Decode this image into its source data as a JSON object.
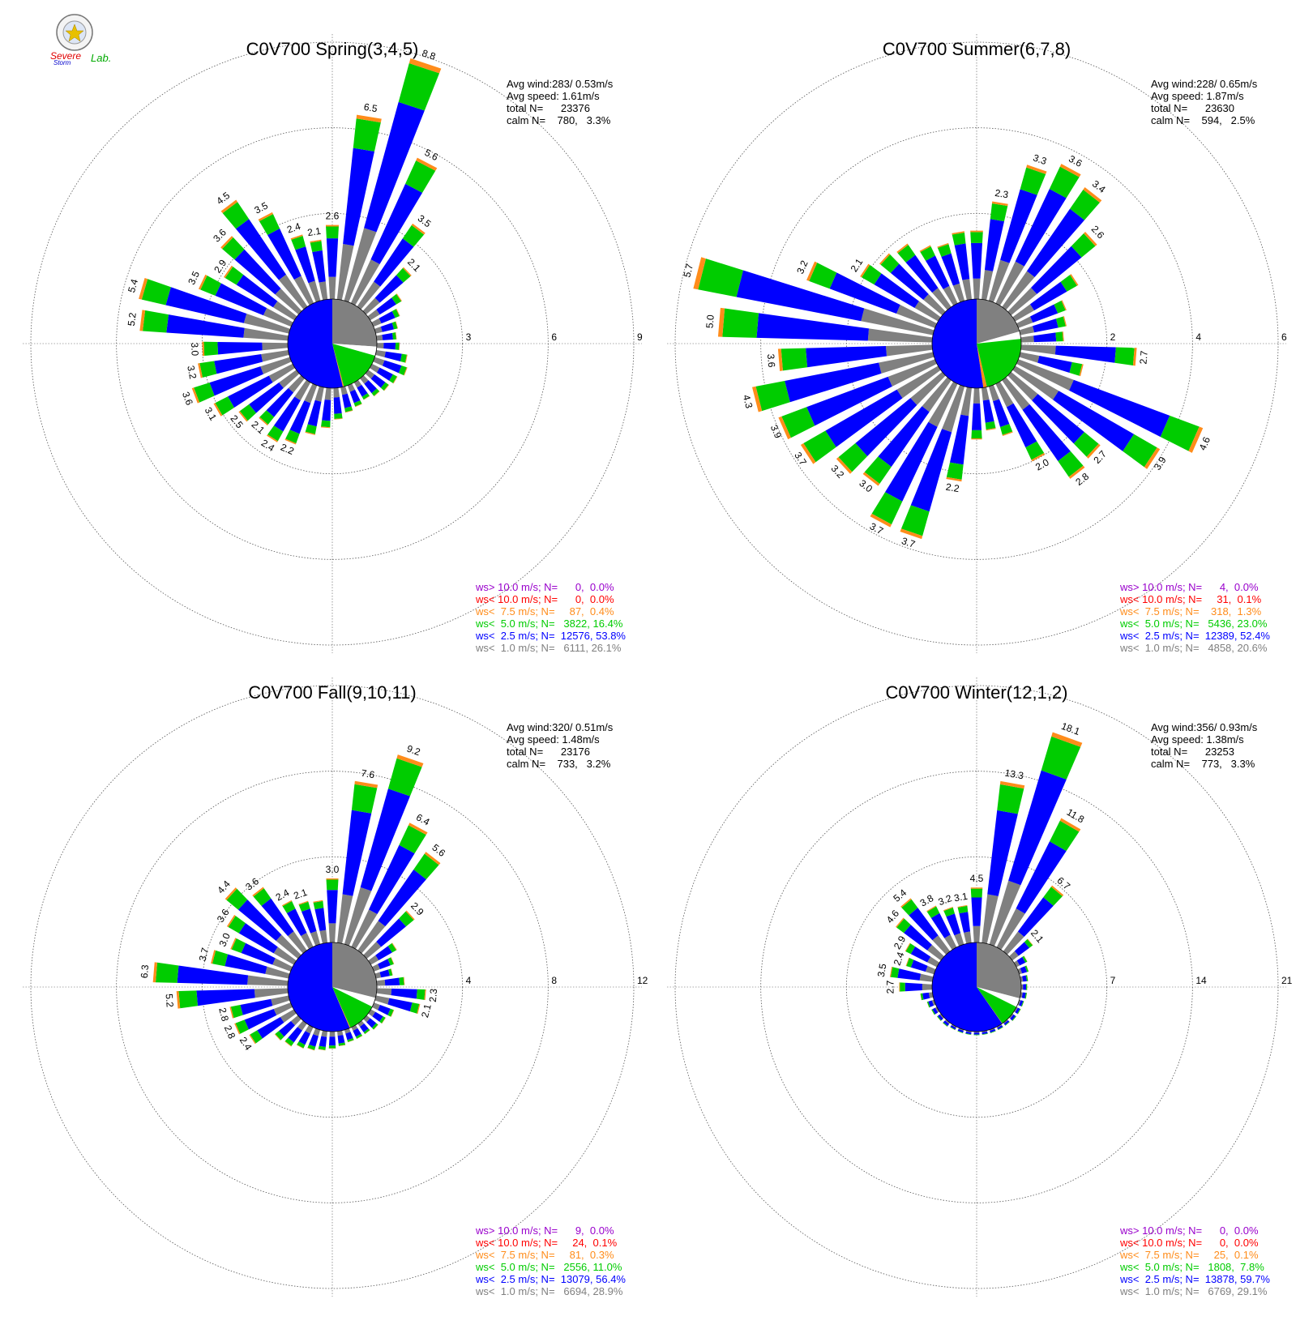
{
  "logo": {
    "text_line1": "Severe",
    "text_line2": "Storm",
    "text_line3": "Lab."
  },
  "colors": {
    "calm_pie": "#808080",
    "ws_lt_1": "#808080",
    "ws_lt_2_5": "#0000ff",
    "ws_lt_5": "#00cc00",
    "ws_lt_7_5": "#ff8c1a",
    "ws_lt_10": "#ff0000",
    "ws_gt_10": "#9900cc",
    "pie_gap": "#ffffff"
  },
  "chart_data": [
    {
      "type": "wind_rose",
      "title": "C0V700 Spring(3,4,5)",
      "rings": [
        3,
        6,
        9
      ],
      "ring_labels": [
        "3",
        "6",
        "9"
      ],
      "stats": [
        "Avg wind:283/ 0.53m/s",
        "Avg speed: 1.61m/s",
        "total N=      23376",
        "calm N=    780,   3.3%"
      ],
      "legend": [
        {
          "text": "ws> 10.0 m/s; N=      0,  0.0%",
          "color": "#9900cc"
        },
        {
          "text": "ws< 10.0 m/s; N=      0,  0.0%",
          "color": "#ff0000"
        },
        {
          "text": "ws<  7.5 m/s; N=     87,  0.4%",
          "color": "#ff8c1a"
        },
        {
          "text": "ws<  5.0 m/s; N=   3822, 16.4%",
          "color": "#00cc00"
        },
        {
          "text": "ws<  2.5 m/s; N=  12576, 53.8%",
          "color": "#0000ff"
        },
        {
          "text": "ws<  1.0 m/s; N=   6111, 26.1%",
          "color": "#808080"
        }
      ],
      "pie": {
        "calm_pct": 26.1,
        "lt2_5_pct": 53.8,
        "lt5_pct": 16.4,
        "lt7_5_pct": 0.4
      },
      "directions": [
        {
          "total": 2.6,
          "label": "2.6"
        },
        {
          "total": 6.5,
          "label": "6.5"
        },
        {
          "total": 8.8,
          "label": "8.8"
        },
        {
          "total": 5.6,
          "label": "5.6"
        },
        {
          "total": 3.5,
          "label": "3.5"
        },
        {
          "total": 2.1,
          "label": "2.1"
        },
        {
          "total": 1.3,
          "label": ""
        },
        {
          "total": 1.0,
          "label": ""
        },
        {
          "total": 0.8,
          "label": ""
        },
        {
          "total": 0.7,
          "label": ""
        },
        {
          "total": 0.8,
          "label": ""
        },
        {
          "total": 1.1,
          "label": ""
        },
        {
          "total": 1.2,
          "label": ""
        },
        {
          "total": 1.0,
          "label": ""
        },
        {
          "total": 0.9,
          "label": ""
        },
        {
          "total": 0.8,
          "label": ""
        },
        {
          "total": 0.7,
          "label": ""
        },
        {
          "total": 0.8,
          "label": ""
        },
        {
          "total": 0.9,
          "label": ""
        },
        {
          "total": 1.1,
          "label": ""
        },
        {
          "total": 1.4,
          "label": ""
        },
        {
          "total": 1.7,
          "label": ""
        },
        {
          "total": 2.2,
          "label": "2.2"
        },
        {
          "total": 2.4,
          "label": "2.4"
        },
        {
          "total": 2.1,
          "label": "2.1"
        },
        {
          "total": 2.5,
          "label": "2.5"
        },
        {
          "total": 3.1,
          "label": "3.1"
        },
        {
          "total": 3.6,
          "label": "3.6"
        },
        {
          "total": 3.2,
          "label": "3.2"
        },
        {
          "total": 3.0,
          "label": "3.0"
        },
        {
          "total": 5.2,
          "label": "5.2"
        },
        {
          "total": 5.4,
          "label": "5.4"
        },
        {
          "total": 3.5,
          "label": "3.5"
        },
        {
          "total": 2.9,
          "label": "2.9"
        },
        {
          "total": 3.6,
          "label": "3.6"
        },
        {
          "total": 4.5,
          "label": "4.5"
        },
        {
          "total": 3.5,
          "label": "3.5"
        },
        {
          "total": 2.4,
          "label": "2.4"
        },
        {
          "total": 2.1,
          "label": "2.1"
        }
      ]
    },
    {
      "type": "wind_rose",
      "title": "C0V700 Summer(6,7,8)",
      "rings": [
        2,
        4,
        6
      ],
      "ring_labels": [
        "2",
        "4",
        "6"
      ],
      "stats": [
        "Avg wind:228/ 0.65m/s",
        "Avg speed: 1.87m/s",
        "total N=      23630",
        "calm N=    594,   2.5%"
      ],
      "legend": [
        {
          "text": "ws> 10.0 m/s; N=      4,  0.0%",
          "color": "#9900cc"
        },
        {
          "text": "ws< 10.0 m/s; N=     31,  0.1%",
          "color": "#ff0000"
        },
        {
          "text": "ws<  7.5 m/s; N=    318,  1.3%",
          "color": "#ff8c1a"
        },
        {
          "text": "ws<  5.0 m/s; N=   5436, 23.0%",
          "color": "#00cc00"
        },
        {
          "text": "ws<  2.5 m/s; N=  12389, 52.4%",
          "color": "#0000ff"
        },
        {
          "text": "ws<  1.0 m/s; N=   4858, 20.6%",
          "color": "#808080"
        }
      ],
      "pie": {
        "calm_pct": 20.6,
        "lt2_5_pct": 52.4,
        "lt5_pct": 23.0,
        "lt7_5_pct": 1.3
      },
      "directions": [
        {
          "total": 1.6,
          "label": ""
        },
        {
          "total": 2.3,
          "label": "2.3"
        },
        {
          "total": 3.3,
          "label": "3.3"
        },
        {
          "total": 3.6,
          "label": "3.6"
        },
        {
          "total": 3.4,
          "label": "3.4"
        },
        {
          "total": 2.6,
          "label": "2.6"
        },
        {
          "total": 1.7,
          "label": ""
        },
        {
          "total": 1.2,
          "label": ""
        },
        {
          "total": 1.1,
          "label": ""
        },
        {
          "total": 1.0,
          "label": ""
        },
        {
          "total": 2.7,
          "label": "2.7"
        },
        {
          "total": 1.5,
          "label": ""
        },
        {
          "total": 4.6,
          "label": "4.6"
        },
        {
          "total": 3.9,
          "label": "3.9"
        },
        {
          "total": 2.7,
          "label": "2.7"
        },
        {
          "total": 2.8,
          "label": "2.8"
        },
        {
          "total": 2.0,
          "label": "2.0"
        },
        {
          "total": 1.2,
          "label": ""
        },
        {
          "total": 1.0,
          "label": ""
        },
        {
          "total": 1.2,
          "label": ""
        },
        {
          "total": 2.2,
          "label": "2.2"
        },
        {
          "total": 3.7,
          "label": "3.7"
        },
        {
          "total": 3.7,
          "label": "3.7"
        },
        {
          "total": 3.0,
          "label": "3.0"
        },
        {
          "total": 3.2,
          "label": "3.2"
        },
        {
          "total": 3.7,
          "label": "3.7"
        },
        {
          "total": 3.9,
          "label": "3.9"
        },
        {
          "total": 4.3,
          "label": "4.3"
        },
        {
          "total": 3.6,
          "label": "3.6"
        },
        {
          "total": 5.0,
          "label": "5.0"
        },
        {
          "total": 5.7,
          "label": "5.7"
        },
        {
          "total": 3.2,
          "label": "3.2"
        },
        {
          "total": 2.1,
          "label": "2.1"
        },
        {
          "total": 1.9,
          "label": ""
        },
        {
          "total": 1.8,
          "label": ""
        },
        {
          "total": 1.5,
          "label": ""
        },
        {
          "total": 1.4,
          "label": ""
        },
        {
          "total": 1.6,
          "label": ""
        }
      ]
    },
    {
      "type": "wind_rose",
      "title": "C0V700 Fall(9,10,11)",
      "rings": [
        4,
        8,
        12
      ],
      "ring_labels": [
        "4",
        "8",
        "12"
      ],
      "stats": [
        "Avg wind:320/ 0.51m/s",
        "Avg speed: 1.48m/s",
        "total N=      23176",
        "calm N=    733,   3.2%"
      ],
      "legend": [
        {
          "text": "ws> 10.0 m/s; N=      9,  0.0%",
          "color": "#9900cc"
        },
        {
          "text": "ws< 10.0 m/s; N=     24,  0.1%",
          "color": "#ff0000"
        },
        {
          "text": "ws<  7.5 m/s; N=     81,  0.3%",
          "color": "#ff8c1a"
        },
        {
          "text": "ws<  5.0 m/s; N=   2556, 11.0%",
          "color": "#00cc00"
        },
        {
          "text": "ws<  2.5 m/s; N=  13079, 56.4%",
          "color": "#0000ff"
        },
        {
          "text": "ws<  1.0 m/s; N=   6694, 28.9%",
          "color": "#808080"
        }
      ],
      "pie": {
        "calm_pct": 28.9,
        "lt2_5_pct": 56.4,
        "lt5_pct": 11.0,
        "lt7_5_pct": 0.3
      },
      "directions": [
        {
          "total": 3.0,
          "label": "3.0"
        },
        {
          "total": 7.6,
          "label": "7.6"
        },
        {
          "total": 9.2,
          "label": "9.2"
        },
        {
          "total": 6.4,
          "label": "6.4"
        },
        {
          "total": 5.6,
          "label": "5.6"
        },
        {
          "total": 2.9,
          "label": "2.9"
        },
        {
          "total": 1.4,
          "label": ""
        },
        {
          "total": 1.0,
          "label": ""
        },
        {
          "total": 0.8,
          "label": ""
        },
        {
          "total": 1.3,
          "label": ""
        },
        {
          "total": 2.3,
          "label": "2.3"
        },
        {
          "total": 2.1,
          "label": "2.1"
        },
        {
          "total": 1.0,
          "label": ""
        },
        {
          "total": 0.8,
          "label": ""
        },
        {
          "total": 0.7,
          "label": ""
        },
        {
          "total": 0.6,
          "label": ""
        },
        {
          "total": 0.6,
          "label": ""
        },
        {
          "total": 0.6,
          "label": ""
        },
        {
          "total": 0.7,
          "label": ""
        },
        {
          "total": 0.8,
          "label": ""
        },
        {
          "total": 0.9,
          "label": ""
        },
        {
          "total": 1.0,
          "label": ""
        },
        {
          "total": 1.1,
          "label": ""
        },
        {
          "total": 1.3,
          "label": ""
        },
        {
          "total": 1.4,
          "label": ""
        },
        {
          "total": 2.4,
          "label": "2.4"
        },
        {
          "total": 2.8,
          "label": "2.8"
        },
        {
          "total": 2.8,
          "label": "2.8"
        },
        {
          "total": 5.2,
          "label": "5.2"
        },
        {
          "total": 6.3,
          "label": "6.3"
        },
        {
          "total": 3.7,
          "label": "3.7"
        },
        {
          "total": 3.0,
          "label": "3.0"
        },
        {
          "total": 3.6,
          "label": "3.6"
        },
        {
          "total": 4.4,
          "label": "4.4"
        },
        {
          "total": 3.6,
          "label": "3.6"
        },
        {
          "total": 2.4,
          "label": "2.4"
        },
        {
          "total": 2.1,
          "label": "2.1"
        },
        {
          "total": 2.0,
          "label": ""
        }
      ]
    },
    {
      "type": "wind_rose",
      "title": "C0V700 Winter(12,1,2)",
      "rings": [
        7,
        14,
        21
      ],
      "ring_labels": [
        "7",
        "14",
        "21"
      ],
      "stats": [
        "Avg wind:356/ 0.93m/s",
        "Avg speed: 1.38m/s",
        "total N=      23253",
        "calm N=    773,   3.3%"
      ],
      "legend": [
        {
          "text": "ws> 10.0 m/s; N=      0,  0.0%",
          "color": "#9900cc"
        },
        {
          "text": "ws< 10.0 m/s; N=      0,  0.0%",
          "color": "#ff0000"
        },
        {
          "text": "ws<  7.5 m/s; N=     25,  0.1%",
          "color": "#ff8c1a"
        },
        {
          "text": "ws<  5.0 m/s; N=   1808,  7.8%",
          "color": "#00cc00"
        },
        {
          "text": "ws<  2.5 m/s; N=  13878, 59.7%",
          "color": "#0000ff"
        },
        {
          "text": "ws<  1.0 m/s; N=   6769, 29.1%",
          "color": "#808080"
        }
      ],
      "pie": {
        "calm_pct": 29.1,
        "lt2_5_pct": 59.7,
        "lt5_pct": 7.8,
        "lt7_5_pct": 0.1
      },
      "directions": [
        {
          "total": 4.5,
          "label": "4.5"
        },
        {
          "total": 13.3,
          "label": "13.3"
        },
        {
          "total": 18.1,
          "label": "18.1"
        },
        {
          "total": 11.8,
          "label": "11.8"
        },
        {
          "total": 6.7,
          "label": "6.7"
        },
        {
          "total": 2.1,
          "label": "2.1"
        },
        {
          "total": 1.0,
          "label": ""
        },
        {
          "total": 0.8,
          "label": ""
        },
        {
          "total": 0.6,
          "label": ""
        },
        {
          "total": 0.5,
          "label": ""
        },
        {
          "total": 0.5,
          "label": ""
        },
        {
          "total": 0.4,
          "label": ""
        },
        {
          "total": 0.4,
          "label": ""
        },
        {
          "total": 0.4,
          "label": ""
        },
        {
          "total": 0.3,
          "label": ""
        },
        {
          "total": 0.3,
          "label": ""
        },
        {
          "total": 0.3,
          "label": ""
        },
        {
          "total": 0.3,
          "label": ""
        },
        {
          "total": 0.3,
          "label": ""
        },
        {
          "total": 0.3,
          "label": ""
        },
        {
          "total": 0.3,
          "label": ""
        },
        {
          "total": 0.3,
          "label": ""
        },
        {
          "total": 0.4,
          "label": ""
        },
        {
          "total": 0.4,
          "label": ""
        },
        {
          "total": 0.5,
          "label": ""
        },
        {
          "total": 0.6,
          "label": ""
        },
        {
          "total": 1.0,
          "label": ""
        },
        {
          "total": 2.7,
          "label": "2.7"
        },
        {
          "total": 3.5,
          "label": "3.5"
        },
        {
          "total": 2.4,
          "label": "2.4"
        },
        {
          "total": 2.9,
          "label": "2.9"
        },
        {
          "total": 4.6,
          "label": "4.6"
        },
        {
          "total": 5.4,
          "label": "5.4"
        },
        {
          "total": 3.8,
          "label": "3.8"
        },
        {
          "total": 3.2,
          "label": "3.2"
        },
        {
          "total": 3.1,
          "label": "3.1"
        }
      ]
    }
  ]
}
